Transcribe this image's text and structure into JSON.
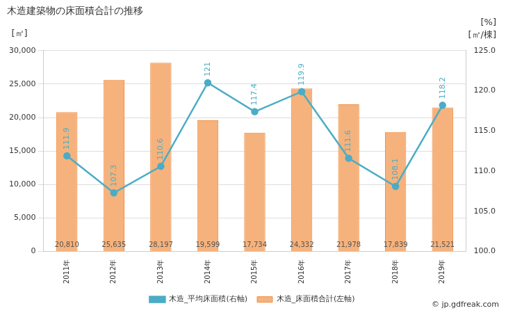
{
  "chart_data": {
    "type": "bar",
    "title": "木造建築物の床面積合計の推移",
    "y_label": "[㎡]",
    "y2_label": [
      "[%]",
      "[㎡/棟]"
    ],
    "annotations": [
      "© jp.gdfreak.com"
    ],
    "categories": [
      "2011年",
      "2012年",
      "2013年",
      "2014年",
      "2015年",
      "2016年",
      "2017年",
      "2018年",
      "2019年"
    ],
    "series": [
      {
        "name": "木造_床面積合計(左軸)",
        "type": "bar",
        "color": "#f6b27c",
        "values": [
          20810,
          25635,
          28197,
          19599,
          17734,
          24332,
          21978,
          17839,
          21521
        ],
        "value_labels": [
          "20,810",
          "25,635",
          "28,197",
          "19,599",
          "17,734",
          "24,332",
          "21,978",
          "17,839",
          "21,521"
        ]
      },
      {
        "name": "木造_平均床面積(右軸)",
        "type": "line",
        "axis": "y2",
        "color": "#4bacc6",
        "marker": "circle",
        "values": [
          111.9,
          107.3,
          110.6,
          121,
          117.4,
          119.9,
          111.6,
          108.1,
          118.2
        ]
      }
    ],
    "ylim": [
      0,
      30000
    ],
    "yticks": [
      0,
      {
        "value": 5000,
        "label": "5,000"
      },
      {
        "value": 10000,
        "label": "10,000"
      },
      {
        "value": 15000,
        "label": "15,000"
      },
      {
        "value": 20000,
        "label": "20,000"
      },
      {
        "value": 25000,
        "label": "25,000"
      },
      {
        "value": 30000,
        "label": "30,000"
      }
    ],
    "y2lim": [
      100,
      125
    ],
    "y2ticks": [
      {
        "value": 100,
        "label": "100.0"
      },
      {
        "value": 105,
        "label": "105.0"
      },
      {
        "value": 110,
        "label": "110.0"
      },
      {
        "value": 115,
        "label": "115.0"
      },
      {
        "value": 120,
        "label": "120.0"
      },
      {
        "value": 125,
        "label": "125.0"
      }
    ],
    "grid": true,
    "data_labels": true,
    "legend": "bottom"
  }
}
